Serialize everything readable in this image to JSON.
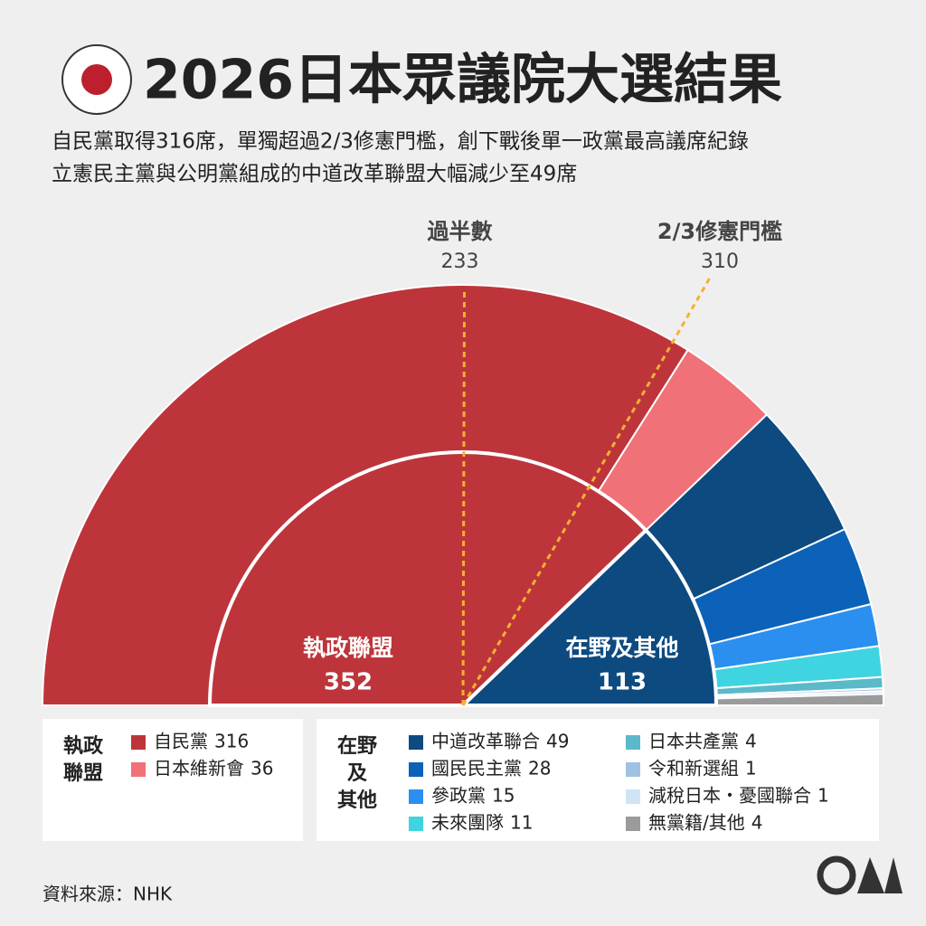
{
  "chart_data": {
    "type": "parliament",
    "title": "2026日本眾議院大選結果",
    "subtitle": [
      "自民黨取得316席，單獨超過2/3修憲門檻，創下戰後單一政黨最高議席紀錄",
      "立憲民主黨與公明黨組成的中道改革聯盟大幅減少至49席"
    ],
    "groups": [
      {
        "name": "執政聯盟",
        "value": 352,
        "color": "#bd353b",
        "legend_title": [
          "執政",
          "聯盟"
        ]
      },
      {
        "name": "在野及其他",
        "value": 113,
        "color": "#0d4a80",
        "legend_title": [
          "在野",
          "及",
          "其他"
        ]
      }
    ],
    "parties": [
      {
        "name": "自民黨",
        "value": 316,
        "color": "#bd353b",
        "group": 0
      },
      {
        "name": "日本維新會",
        "value": 36,
        "color": "#f07177",
        "group": 0
      },
      {
        "name": "中道改革聯合",
        "value": 49,
        "color": "#0d4a80",
        "group": 1
      },
      {
        "name": "國民民主黨",
        "value": 28,
        "color": "#0b62b8",
        "group": 1
      },
      {
        "name": "參政黨",
        "value": 15,
        "color": "#2b8ff0",
        "group": 1
      },
      {
        "name": "未來團隊",
        "value": 11,
        "color": "#3fd4e0",
        "group": 1
      },
      {
        "name": "日本共產黨",
        "value": 4,
        "color": "#5bb9c9",
        "group": 1
      },
      {
        "name": "令和新選組",
        "value": 1,
        "color": "#9fc1e2",
        "group": 1
      },
      {
        "name": "減稅日本・憂國聯合",
        "value": 1,
        "color": "#d0e4f6",
        "group": 1
      },
      {
        "name": "無黨籍/其他",
        "value": 4,
        "color": "#9b9b9b",
        "group": 1
      }
    ],
    "thresholds": [
      {
        "label": "過半數",
        "value": 233
      },
      {
        "label": "2/3修憲門檻",
        "value": 310
      }
    ],
    "threshold_color": "#f2b230",
    "source": "資料來源：NHK"
  }
}
